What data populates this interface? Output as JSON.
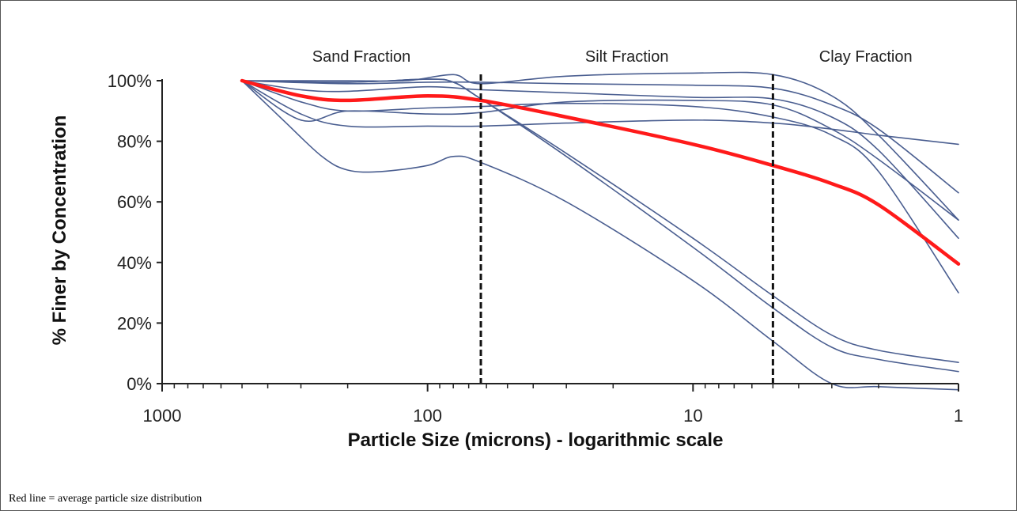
{
  "chart_data": {
    "type": "line",
    "title": "",
    "xlabel": "Particle Size (microns) - logarithmic scale",
    "ylabel": "% Finer by Concentration",
    "x_scale": "log",
    "x_reversed": true,
    "xlim": [
      1000,
      1
    ],
    "ylim": [
      0,
      100
    ],
    "x_ticks": [
      {
        "value": 1000,
        "label": "1000"
      },
      {
        "value": 100,
        "label": "100"
      },
      {
        "value": 10,
        "label": "10"
      },
      {
        "value": 1,
        "label": "1"
      }
    ],
    "y_ticks": [
      {
        "value": 0,
        "label": "0%"
      },
      {
        "value": 20,
        "label": "20%"
      },
      {
        "value": 40,
        "label": "40%"
      },
      {
        "value": 60,
        "label": "60%"
      },
      {
        "value": 80,
        "label": "80%"
      },
      {
        "value": 100,
        "label": "100%"
      }
    ],
    "grid": false,
    "regions": [
      {
        "label": "Sand Fraction",
        "from": 500,
        "to": 63
      },
      {
        "label": "Silt Fraction",
        "from": 63,
        "to": 5
      },
      {
        "label": "Clay Fraction",
        "from": 5,
        "to": 1
      }
    ],
    "dividers": [
      63,
      5
    ],
    "series_colors": {
      "sample": "#4a5e90",
      "average": "#ff1a1a"
    },
    "series": [
      {
        "role": "average",
        "x": [
          500,
          300,
          200,
          100,
          63,
          30,
          10,
          5,
          3,
          2,
          1
        ],
        "values": [
          100,
          95,
          93.5,
          95,
          93.5,
          88,
          79,
          72,
          66,
          59,
          39.5
        ]
      },
      {
        "role": "sample",
        "x": [
          500,
          200,
          120,
          80,
          63,
          30,
          10,
          5,
          3,
          2,
          1
        ],
        "values": [
          100,
          100,
          100,
          102,
          99,
          101.5,
          102.5,
          102,
          95,
          82,
          54
        ]
      },
      {
        "role": "sample",
        "x": [
          500,
          200,
          100,
          63,
          30,
          10,
          5,
          3,
          2,
          1
        ],
        "values": [
          100,
          99,
          99.5,
          99.5,
          99,
          98.5,
          97.5,
          92,
          84,
          63
        ]
      },
      {
        "role": "sample",
        "x": [
          500,
          300,
          200,
          100,
          63,
          30,
          10,
          5,
          3,
          2,
          1
        ],
        "values": [
          100,
          97,
          96.5,
          98,
          97,
          96,
          94.5,
          94,
          88,
          77,
          48
        ]
      },
      {
        "role": "sample",
        "x": [
          500,
          300,
          200,
          100,
          63,
          30,
          10,
          5,
          3,
          2,
          1
        ],
        "values": [
          100,
          93,
          90,
          91,
          91.5,
          92.5,
          91.5,
          88,
          82,
          70,
          30
        ]
      },
      {
        "role": "sample",
        "x": [
          500,
          300,
          200,
          100,
          63,
          30,
          10,
          5,
          3,
          2,
          1
        ],
        "values": [
          100,
          89,
          85,
          85,
          85,
          86,
          87,
          86,
          84,
          82,
          79
        ]
      },
      {
        "role": "sample",
        "x": [
          500,
          300,
          200,
          100,
          63,
          30,
          10,
          5,
          3,
          2,
          1
        ],
        "values": [
          100,
          87,
          90,
          89,
          89.5,
          93,
          93.5,
          92,
          84,
          74,
          54
        ]
      },
      {
        "role": "sample",
        "x": [
          500,
          350,
          250,
          200,
          150,
          100,
          80,
          63,
          30,
          10,
          5,
          3,
          2,
          1
        ],
        "values": [
          100,
          87,
          75,
          70.5,
          70,
          72,
          75,
          73,
          60,
          34,
          14,
          0,
          -1,
          -2
        ]
      },
      {
        "role": "sample",
        "x": [
          500,
          200,
          100,
          80,
          63,
          30,
          10,
          5,
          3,
          2,
          1
        ],
        "values": [
          100,
          99.5,
          100.5,
          99.5,
          94,
          76,
          48,
          29,
          16,
          11,
          7
        ]
      },
      {
        "role": "sample",
        "x": [
          500,
          200,
          100,
          80,
          63,
          30,
          10,
          5,
          3,
          2,
          1
        ],
        "values": [
          100,
          99.5,
          100.5,
          99.5,
          94,
          75,
          45,
          25,
          12,
          8,
          4
        ]
      }
    ]
  },
  "caption": "Red line = average particle size distribution"
}
